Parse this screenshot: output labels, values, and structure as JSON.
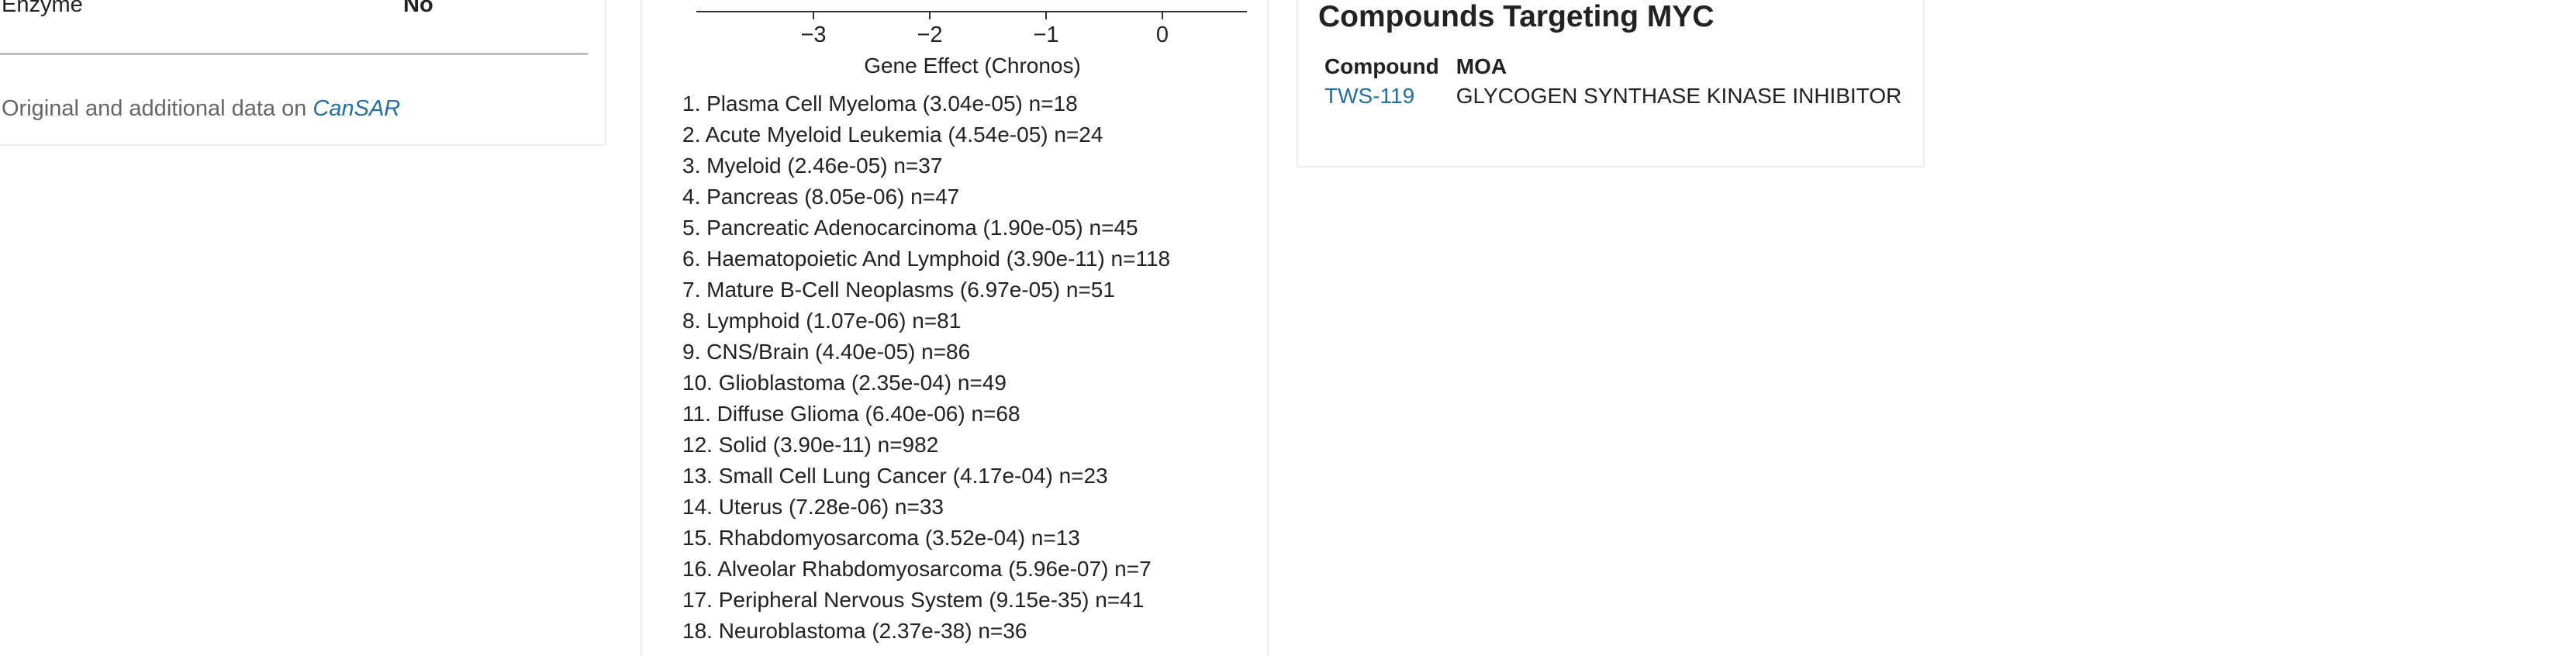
{
  "left_card": {
    "property_label": "Enzyme",
    "property_value": "No",
    "source_prefix": "Original and additional data on",
    "source_link": "CanSAR"
  },
  "gene_effect": {
    "axis": {
      "ticks": [
        "−3",
        "−2",
        "−1",
        "0"
      ],
      "tick_values": [
        -3,
        -2,
        -1,
        0
      ],
      "label": "Gene Effect (Chronos)"
    },
    "lineages": [
      "1. Plasma Cell Myeloma (3.04e-05) n=18",
      "2. Acute Myeloid Leukemia (4.54e-05) n=24",
      "3. Myeloid (2.46e-05) n=37",
      "4. Pancreas (8.05e-06) n=47",
      "5. Pancreatic Adenocarcinoma (1.90e-05) n=45",
      "6. Haematopoietic And Lymphoid (3.90e-11) n=118",
      "7. Mature B-Cell Neoplasms (6.97e-05) n=51",
      "8. Lymphoid (1.07e-06) n=81",
      "9. CNS/Brain (4.40e-05) n=86",
      "10. Glioblastoma (2.35e-04) n=49",
      "11. Diffuse Glioma (6.40e-06) n=68",
      "12. Solid (3.90e-11) n=982",
      "13. Small Cell Lung Cancer (4.17e-04) n=23",
      "14. Uterus (7.28e-06) n=33",
      "15. Rhabdomyosarcoma (3.52e-04) n=13",
      "16. Alveolar Rhabdomyosarcoma (5.96e-07) n=7",
      "17. Peripheral Nervous System (9.15e-35) n=41",
      "18. Neuroblastoma (2.37e-38) n=36"
    ]
  },
  "compounds": {
    "title": "Compounds Targeting MYC",
    "columns": [
      "Compound",
      "MOA"
    ],
    "rows": [
      {
        "compound": "TWS-119",
        "moa": "GLYCOGEN SYNTHASE KINASE INHIBITOR"
      }
    ]
  },
  "colors": {
    "link": "#1f6ea8",
    "muted_text": "#666666",
    "card_border": "#ececec"
  }
}
